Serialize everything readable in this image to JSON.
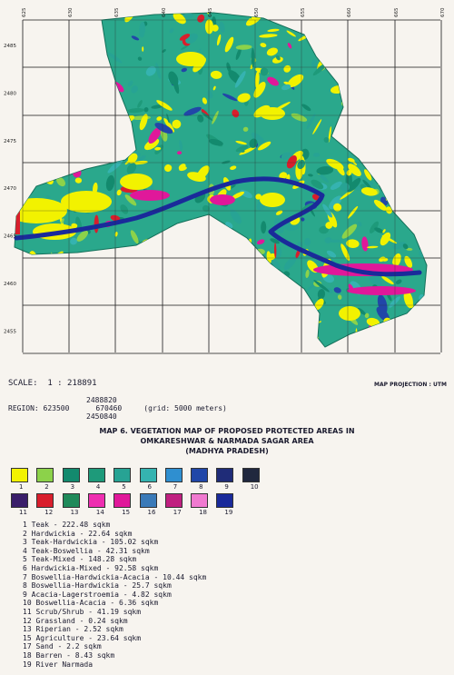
{
  "grid_ticks": {
    "top": [
      "625",
      "630",
      "635",
      "640",
      "645",
      "650",
      "655",
      "660",
      "665",
      "670"
    ],
    "left": [
      "2485",
      "2480",
      "2475",
      "2470",
      "2465",
      "2460",
      "2455"
    ]
  },
  "scale_text": "SCALE:  1 : 218891",
  "projection_text": "MAP PROJECTION : UTM",
  "region": {
    "top": "2488820",
    "line": "REGION: 623500      670460     (grid: 5000 meters)",
    "bottom": "2450840"
  },
  "title_lines": [
    "MAP 6.  VEGETATION  MAP OF  PROPOSED PROTECTED AREAS IN",
    "OMKARESHWAR & NARMADA SAGAR AREA",
    "(MADHYA PRADESH)"
  ],
  "colors": {
    "background": "#f7f4ef",
    "teak": "#f2f200",
    "teak_mixed": "#2aa88c",
    "river": "#1a2a9a",
    "agriculture": "#e0189a",
    "grassland": "#d91e2c"
  },
  "swatches": [
    {
      "num": "1",
      "color": "#f2f200"
    },
    {
      "num": "2",
      "color": "#8cd24a"
    },
    {
      "num": "3",
      "color": "#138a6e"
    },
    {
      "num": "4",
      "color": "#1e9a7a"
    },
    {
      "num": "5",
      "color": "#27a394"
    },
    {
      "num": "6",
      "color": "#35b3b0"
    },
    {
      "num": "7",
      "color": "#2f8fd0"
    },
    {
      "num": "8",
      "color": "#2147a8"
    },
    {
      "num": "9",
      "color": "#1f2c78"
    },
    {
      "num": "10",
      "color": "#20283e"
    },
    {
      "num": "11",
      "color": "#3a1e6a"
    },
    {
      "num": "12",
      "color": "#d91e2c"
    },
    {
      "num": "13",
      "color": "#1f8a5a"
    },
    {
      "num": "14",
      "color": "#ee2eb0"
    },
    {
      "num": "15",
      "color": "#e0189a"
    },
    {
      "num": "16",
      "color": "#3a7ab8"
    },
    {
      "num": "17",
      "color": "#c02080"
    },
    {
      "num": "18",
      "color": "#f07ad0"
    },
    {
      "num": "19",
      "color": "#1a2a9a"
    }
  ],
  "legend": [
    "1 Teak - 222.48 sqkm",
    "2 Hardwickia - 22.64 sqkm",
    "3 Teak-Hardwickia - 105.02 sqkm",
    "4 Teak-Boswellia - 42.31 sqkm",
    "5 Teak-Mixed - 148.28 sqkm",
    "6 Hardwickia-Mixed - 92.58 sqkm",
    "7 Boswellia-Hardwickia-Acacia - 10.44 sqkm",
    "8 Boswellia-Hardwickia - 25.7 sqkm",
    "9 Acacia-Lagerstroemia - 4.82 sqkm",
    "10 Boswellia-Acacia - 6.36 sqkm",
    "11 Scrub/Shrub - 41.19 sqkm",
    "12 Grassland - 0.24 sqkm",
    "13 Riperian - 2.52 sqkm",
    "15 Agriculture - 23.64 sqkm",
    "17 Sand - 2.2 sqkm",
    "18 Barren - 8.43 sqkm",
    "19 River Narmada"
  ]
}
